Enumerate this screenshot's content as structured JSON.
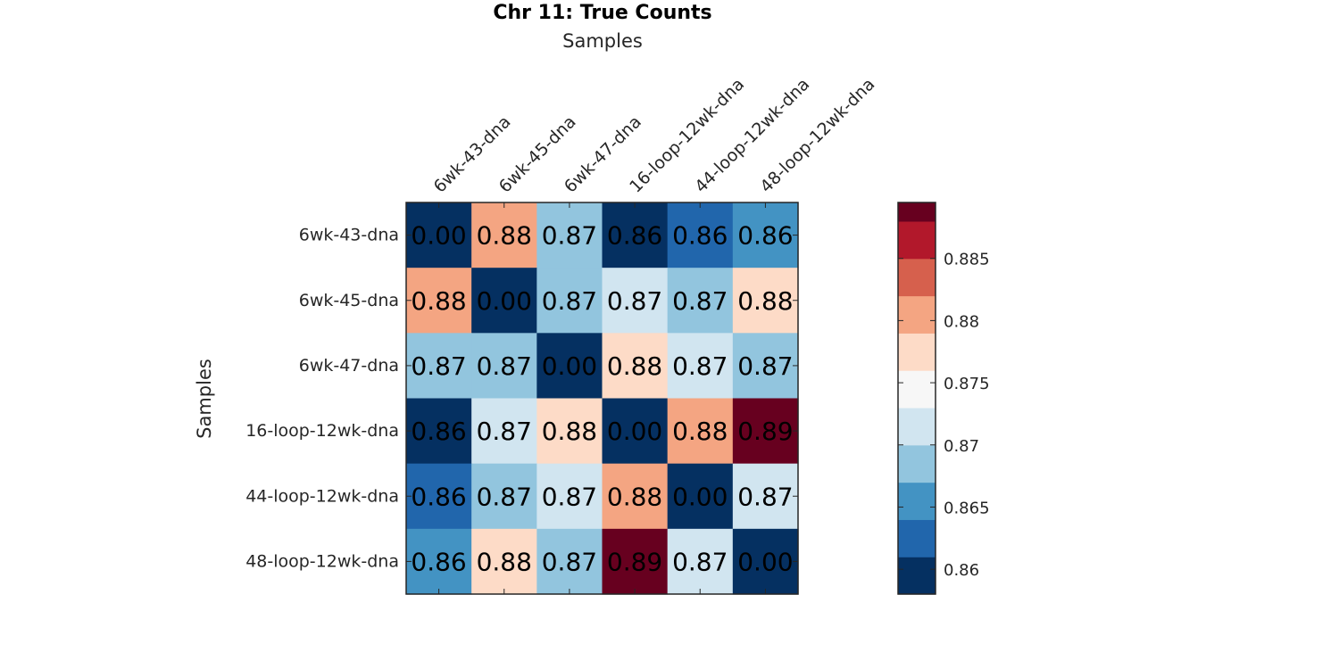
{
  "chart_data": {
    "type": "heatmap",
    "title": "Chr 11: True Counts",
    "xlabel": "Samples",
    "ylabel": "Samples",
    "x_categories": [
      "6wk-43-dna",
      "6wk-45-dna",
      "6wk-47-dna",
      "16-loop-12wk-dna",
      "44-loop-12wk-dna",
      "48-loop-12wk-dna"
    ],
    "y_categories": [
      "6wk-43-dna",
      "6wk-45-dna",
      "6wk-47-dna",
      "16-loop-12wk-dna",
      "44-loop-12wk-dna",
      "48-loop-12wk-dna"
    ],
    "values": [
      [
        0.0,
        0.881,
        0.867,
        0.86,
        0.862,
        0.864
      ],
      [
        0.881,
        0.0,
        0.867,
        0.871,
        0.868,
        0.877
      ],
      [
        0.867,
        0.867,
        0.0,
        0.877,
        0.871,
        0.868
      ],
      [
        0.86,
        0.871,
        0.877,
        0.0,
        0.881,
        0.889
      ],
      [
        0.862,
        0.868,
        0.871,
        0.881,
        0.0,
        0.871
      ],
      [
        0.864,
        0.877,
        0.868,
        0.889,
        0.871,
        0.0
      ]
    ],
    "cell_labels": [
      [
        "0.00",
        "0.88",
        "0.87",
        "0.86",
        "0.86",
        "0.86"
      ],
      [
        "0.88",
        "0.00",
        "0.87",
        "0.87",
        "0.87",
        "0.88"
      ],
      [
        "0.87",
        "0.87",
        "0.00",
        "0.88",
        "0.87",
        "0.87"
      ],
      [
        "0.86",
        "0.87",
        "0.88",
        "0.00",
        "0.88",
        "0.89"
      ],
      [
        "0.86",
        "0.87",
        "0.87",
        "0.88",
        "0.00",
        "0.87"
      ],
      [
        "0.86",
        "0.88",
        "0.87",
        "0.89",
        "0.87",
        "0.00"
      ]
    ],
    "colorbar": {
      "range": [
        0.858,
        0.8895
      ],
      "bin_width": 0.003,
      "ticks": [
        0.86,
        0.865,
        0.87,
        0.875,
        0.88,
        0.885
      ],
      "tick_labels": [
        "0.86",
        "0.865",
        "0.87",
        "0.875",
        "0.88",
        "0.885"
      ],
      "colors": [
        "#053061",
        "#2166ac",
        "#4393c3",
        "#92c5de",
        "#d1e5f0",
        "#f7f7f7",
        "#fddbc7",
        "#f4a582",
        "#d6604d",
        "#b2182b",
        "#67001f"
      ]
    },
    "legend": "colorbar-right",
    "grid": false
  }
}
